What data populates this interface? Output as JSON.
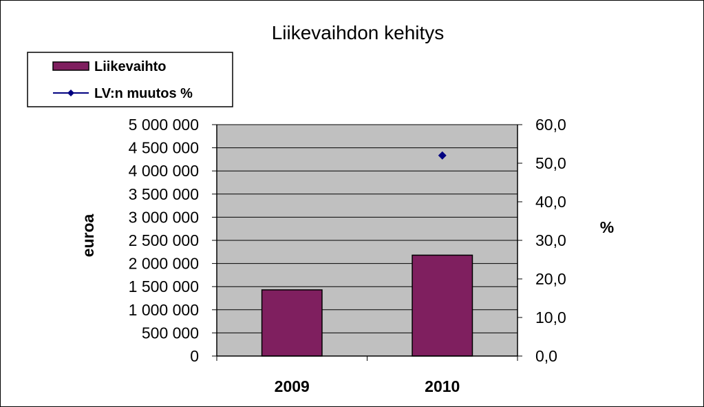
{
  "chart_data": {
    "type": "bar",
    "title": "Liikevaihdon kehitys",
    "categories": [
      "2009",
      "2010"
    ],
    "series": [
      {
        "name": "Liikevaihto",
        "type": "bar",
        "axis": "left",
        "color": "#7F1F5F",
        "values": [
          1430000,
          2180000
        ]
      },
      {
        "name": "LV:n muutos %",
        "type": "scatter",
        "axis": "right",
        "color": "#000080",
        "marker": "diamond",
        "values": [
          null,
          52.0
        ]
      }
    ],
    "ylabel": "euroa",
    "y2label": "%",
    "ylim": [
      0,
      5000000
    ],
    "y2lim": [
      0,
      60
    ],
    "yticks": [
      "0",
      "500 000",
      "1 000 000",
      "1 500 000",
      "2 000 000",
      "2 500 000",
      "3 000 000",
      "3 500 000",
      "4 000 000",
      "4 500 000",
      "5 000 000"
    ],
    "y2ticks": [
      "0,0",
      "10,0",
      "20,0",
      "30,0",
      "40,0",
      "50,0",
      "60,0"
    ],
    "grid": true,
    "plot_background": "#C0C0C0",
    "legend_position": "top-left"
  }
}
